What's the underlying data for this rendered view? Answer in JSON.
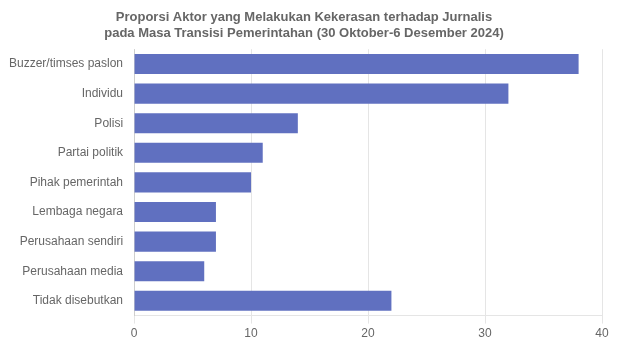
{
  "chart_data": {
    "type": "bar",
    "orientation": "horizontal",
    "title": "Proporsi Aktor yang Melakukan Kekerasan terhadap Jurnalis\npada Masa Transisi Pemerintahan (30 Oktober-6 Desember 2024)",
    "categories": [
      "Tidak disebutkan",
      "Perusahaan media",
      "Perusahaan sendiri",
      "Lembaga negara",
      "Pihak pemerintah",
      "Partai politik",
      "Polisi",
      "Individu",
      "Buzzer/timses paslon"
    ],
    "values": [
      22,
      6,
      7,
      7,
      10,
      11,
      14,
      32,
      38
    ],
    "color": "#6070c0",
    "xlim": [
      0,
      40
    ],
    "xticks": [
      0,
      10,
      20,
      30,
      40
    ],
    "grid": true
  }
}
